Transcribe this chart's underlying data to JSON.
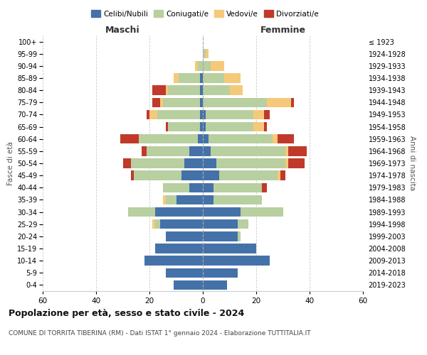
{
  "age_groups": [
    "0-4",
    "5-9",
    "10-14",
    "15-19",
    "20-24",
    "25-29",
    "30-34",
    "35-39",
    "40-44",
    "45-49",
    "50-54",
    "55-59",
    "60-64",
    "65-69",
    "70-74",
    "75-79",
    "80-84",
    "85-89",
    "90-94",
    "95-99",
    "100+"
  ],
  "birth_years": [
    "2019-2023",
    "2014-2018",
    "2009-2013",
    "2004-2008",
    "1999-2003",
    "1994-1998",
    "1989-1993",
    "1984-1988",
    "1979-1983",
    "1974-1978",
    "1969-1973",
    "1964-1968",
    "1959-1963",
    "1954-1958",
    "1949-1953",
    "1944-1948",
    "1939-1943",
    "1934-1938",
    "1929-1933",
    "1924-1928",
    "≤ 1923"
  ],
  "male": {
    "celibi": [
      11,
      14,
      22,
      18,
      14,
      16,
      18,
      10,
      5,
      8,
      7,
      5,
      2,
      1,
      1,
      1,
      1,
      1,
      0,
      0,
      0
    ],
    "coniugati": [
      0,
      0,
      0,
      0,
      0,
      2,
      10,
      4,
      10,
      18,
      20,
      16,
      22,
      12,
      16,
      14,
      12,
      8,
      2,
      0,
      0
    ],
    "vedovi": [
      0,
      0,
      0,
      0,
      0,
      1,
      0,
      1,
      0,
      0,
      0,
      0,
      0,
      0,
      3,
      1,
      1,
      2,
      1,
      0,
      0
    ],
    "divorziati": [
      0,
      0,
      0,
      0,
      0,
      0,
      0,
      0,
      0,
      1,
      3,
      2,
      7,
      1,
      1,
      3,
      5,
      0,
      0,
      0,
      0
    ]
  },
  "female": {
    "nubili": [
      9,
      13,
      25,
      20,
      13,
      13,
      14,
      4,
      4,
      6,
      5,
      3,
      2,
      1,
      1,
      0,
      0,
      0,
      0,
      0,
      0
    ],
    "coniugate": [
      0,
      0,
      0,
      0,
      1,
      4,
      16,
      18,
      18,
      22,
      26,
      28,
      24,
      18,
      18,
      24,
      10,
      8,
      3,
      1,
      0
    ],
    "vedove": [
      0,
      0,
      0,
      0,
      0,
      0,
      0,
      0,
      0,
      1,
      1,
      1,
      2,
      4,
      4,
      9,
      5,
      6,
      5,
      1,
      0
    ],
    "divorziate": [
      0,
      0,
      0,
      0,
      0,
      0,
      0,
      0,
      2,
      2,
      6,
      7,
      6,
      1,
      2,
      1,
      0,
      0,
      0,
      0,
      0
    ]
  },
  "colors": {
    "celibi": "#4472a8",
    "coniugati": "#b8cfa0",
    "vedovi": "#f5c97a",
    "divorziati": "#c0392b"
  },
  "title": "Popolazione per età, sesso e stato civile - 2024",
  "subtitle": "COMUNE DI TORRITA TIBERINA (RM) - Dati ISTAT 1° gennaio 2024 - Elaborazione TUTTITALIA.IT",
  "xlabel_left": "Maschi",
  "xlabel_right": "Femmine",
  "ylabel_left": "Fasce di età",
  "ylabel_right": "Anni di nascita",
  "xlim": 60,
  "legend_labels": [
    "Celibi/Nubili",
    "Coniugati/e",
    "Vedovi/e",
    "Divorziati/e"
  ]
}
